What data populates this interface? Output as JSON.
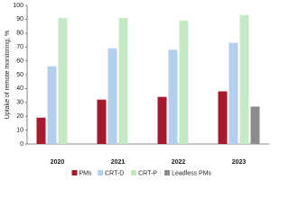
{
  "chart_data": {
    "type": "bar",
    "y_label": "Uptake of remote monitoring, %",
    "categories": [
      "2020",
      "2021",
      "2022",
      "2023"
    ],
    "series": [
      {
        "name": "PMs",
        "color": "#a6192e",
        "values": [
          19,
          32,
          34,
          38
        ]
      },
      {
        "name": "CRT-D",
        "color": "#b3cfee",
        "values": [
          56,
          69,
          68,
          73
        ]
      },
      {
        "name": "CRT-P",
        "color": "#c7e8c5",
        "values": [
          91,
          91,
          89,
          93
        ]
      },
      {
        "name": "Leadless PMs",
        "color": "#8c8c8c",
        "values": [
          null,
          null,
          null,
          27
        ]
      }
    ],
    "ylim": [
      0,
      100
    ],
    "yticks": [
      0,
      10,
      20,
      30,
      40,
      50,
      60,
      70,
      80,
      90,
      100
    ],
    "grid": false,
    "legend": "bottom"
  }
}
